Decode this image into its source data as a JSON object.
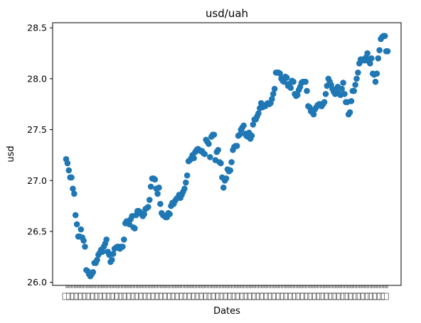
{
  "chart_data": {
    "type": "scatter",
    "title": "usd/uah",
    "xlabel": "Dates",
    "ylabel": "usd",
    "ylim": [
      25.97,
      28.55
    ],
    "yticks": [
      26.0,
      26.5,
      27.0,
      27.5,
      28.0,
      28.5
    ],
    "grid": false,
    "legend": "none",
    "marker_color": "#1f77b4",
    "x_tick_labels_note": "overlapping date labels, unreadable",
    "series": [
      {
        "values": [
          27.21,
          27.17,
          27.1,
          27.03,
          27.03,
          26.92,
          26.87,
          26.66,
          26.57,
          26.45,
          26.45,
          26.52,
          26.44,
          26.41,
          26.35,
          26.12,
          26.11,
          26.08,
          26.06,
          26.08,
          26.1,
          26.19,
          26.19,
          26.22,
          26.27,
          26.29,
          26.32,
          26.3,
          26.35,
          26.38,
          26.42,
          26.3,
          26.27,
          26.2,
          26.22,
          26.28,
          26.33,
          26.34,
          26.35,
          26.35,
          26.33,
          26.35,
          26.35,
          26.42,
          26.58,
          26.6,
          26.6,
          26.57,
          26.62,
          26.65,
          26.54,
          26.53,
          26.66,
          26.7,
          26.7,
          26.69,
          26.67,
          26.65,
          26.67,
          26.72,
          26.73,
          26.74,
          26.81,
          26.94,
          27.02,
          27.02,
          27.01,
          26.92,
          26.87,
          26.93,
          26.77,
          26.68,
          26.66,
          26.65,
          26.64,
          26.64,
          26.68,
          26.67,
          26.75,
          26.78,
          26.77,
          26.8,
          26.82,
          26.83,
          26.86,
          26.83,
          26.86,
          26.89,
          26.92,
          26.98,
          27.05,
          27.19,
          27.2,
          27.22,
          27.25,
          27.22,
          27.28,
          27.3,
          27.31,
          27.3,
          27.29,
          27.29,
          27.27,
          27.26,
          27.4,
          27.38,
          27.36,
          27.23,
          27.43,
          27.45,
          27.45,
          27.2,
          27.28,
          27.3,
          27.18,
          27.17,
          27.03,
          26.93,
          27.0,
          27.02,
          27.11,
          27.09,
          27.1,
          27.18,
          27.3,
          27.33,
          27.34,
          27.34,
          27.44,
          27.45,
          27.5,
          27.52,
          27.54,
          27.46,
          27.44,
          27.43,
          27.47,
          27.41,
          27.44,
          27.55,
          27.6,
          27.6,
          27.63,
          27.66,
          27.71,
          27.76,
          27.72,
          27.73,
          27.73,
          27.75,
          27.76,
          27.75,
          27.76,
          27.8,
          27.85,
          27.9,
          28.06,
          28.06,
          28.06,
          28.05,
          28.0,
          27.98,
          27.97,
          28.02,
          28.01,
          27.93,
          27.95,
          27.91,
          27.98,
          27.97,
          27.85,
          27.83,
          27.84,
          27.89,
          27.92,
          27.96,
          27.97,
          27.97,
          27.97,
          27.88,
          27.73,
          27.72,
          27.68,
          27.67,
          27.65,
          27.7,
          27.72,
          27.74,
          27.75,
          27.75,
          27.73,
          27.75,
          27.77,
          27.85,
          27.93,
          28.0,
          27.97,
          27.94,
          27.9,
          27.87,
          27.85,
          27.87,
          27.92,
          27.85,
          27.84,
          27.9,
          27.96,
          27.85,
          27.77,
          27.77,
          27.65,
          27.67,
          27.78,
          27.88,
          27.88,
          27.94,
          28.0,
          28.06,
          28.15,
          28.19,
          28.18,
          28.19,
          28.18,
          28.21,
          28.25,
          28.17,
          28.15,
          28.2,
          28.05,
          28.04,
          27.97,
          28.05,
          28.2,
          28.28,
          28.39,
          28.41,
          28.42,
          28.42,
          28.27,
          28.27
        ]
      }
    ]
  }
}
